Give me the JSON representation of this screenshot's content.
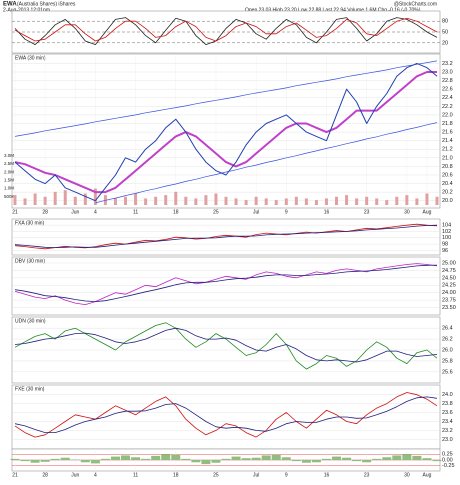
{
  "header": {
    "symbol": "EWA",
    "name": "(Australia Shares) iShares",
    "date": "2-Aug-2013 12:01pm",
    "quote": "Open 23.03 High 23.20 Low 22.88 Last 22.94 Volume 1.6M Chg -0.16 (-0.70%)",
    "source": "@StockCharts.com"
  },
  "chart_data": [
    {
      "type": "line",
      "ylim": [
        0,
        100
      ],
      "yticks": [
        20,
        50,
        80
      ],
      "grid": "dashed",
      "series": [
        {
          "color": "#222222",
          "width": 0.8,
          "values": [
            60,
            30,
            15,
            40,
            70,
            85,
            60,
            25,
            15,
            50,
            85,
            90,
            70,
            40,
            20,
            55,
            88,
            80,
            40,
            15,
            25,
            60,
            85,
            75,
            45,
            30,
            60,
            85,
            70,
            35,
            20,
            50,
            85,
            90,
            60,
            25,
            45,
            80,
            90,
            85,
            70,
            50,
            35
          ]
        },
        {
          "color": "#d01010",
          "width": 0.8,
          "values": [
            55,
            40,
            25,
            30,
            50,
            70,
            70,
            45,
            25,
            35,
            60,
            80,
            80,
            60,
            35,
            40,
            65,
            80,
            65,
            35,
            25,
            40,
            65,
            75,
            65,
            45,
            45,
            65,
            75,
            55,
            35,
            40,
            60,
            85,
            75,
            45,
            40,
            60,
            80,
            88,
            80,
            65,
            50
          ]
        }
      ]
    },
    {
      "type": "line",
      "title": "EWA (30 min)",
      "ylim": [
        19.9,
        23.35
      ],
      "yticks": [
        {
          "value": 20,
          "label": "20.0"
        },
        20.2,
        20.4,
        20.6,
        20.8,
        {
          "value": 21,
          "label": "21.0"
        },
        21.2,
        21.4,
        21.6,
        21.8,
        {
          "value": 22,
          "label": "22.0"
        },
        22.2,
        22.4,
        22.6,
        22.8,
        {
          "value": 23,
          "label": "23.0"
        },
        23.2
      ],
      "grid": true,
      "y2lim": [
        0,
        9000000
      ],
      "y2ticks": [
        {
          "value": 500000,
          "label": "500K"
        },
        {
          "value": 1000000,
          "label": "1.0M"
        },
        {
          "value": 1500000,
          "label": "1.5M"
        },
        {
          "value": 2000000,
          "label": "2.0M"
        },
        {
          "value": 2500000,
          "label": "2.5M"
        },
        {
          "value": 3000000,
          "label": "3.0M"
        }
      ],
      "categories": [
        "21",
        null,
        null,
        "28",
        null,
        null,
        "Jun",
        null,
        "4",
        null,
        null,
        null,
        "11",
        null,
        null,
        null,
        "18",
        null,
        null,
        null,
        "25",
        null,
        null,
        null,
        "Jul",
        null,
        null,
        "9",
        null,
        null,
        null,
        "16",
        null,
        null,
        null,
        "23",
        null,
        null,
        null,
        "30",
        null,
        "Aug",
        null
      ],
      "series": [
        {
          "axis": "y2",
          "color": "#e0a0a0",
          "values": [
            600000,
            400000,
            700000,
            500000,
            800000,
            900000,
            500000,
            700000,
            1000000,
            600000,
            400000,
            500000,
            700000,
            400000,
            500000,
            600000,
            800000,
            500000,
            400000,
            600000,
            700000,
            500000,
            400000,
            300000,
            500000,
            400000,
            300000,
            400000,
            500000,
            400000,
            300000,
            400000,
            500000,
            600000,
            400000,
            500000,
            400000,
            300000,
            500000,
            600000,
            400000,
            700000,
            500000
          ]
        },
        {
          "color": "#3a50e0",
          "width": 0.7,
          "values": [
            21.5,
            21.54,
            21.58,
            21.63,
            21.67,
            21.71,
            21.75,
            21.79,
            21.84,
            21.88,
            21.92,
            21.96,
            22.0,
            22.05,
            22.09,
            22.13,
            22.17,
            22.21,
            22.26,
            22.3,
            22.34,
            22.38,
            22.42,
            22.47,
            22.51,
            22.55,
            22.59,
            22.63,
            22.68,
            22.72,
            22.76,
            22.8,
            22.84,
            22.89,
            22.93,
            22.97,
            23.01,
            23.05,
            23.1,
            23.14,
            23.18,
            23.22,
            23.26
          ]
        },
        {
          "color": "#3a50e0",
          "width": 0.7,
          "values": [
            null,
            null,
            null,
            null,
            null,
            null,
            null,
            null,
            19.95,
            20.01,
            20.06,
            20.12,
            20.17,
            20.23,
            20.28,
            20.34,
            20.39,
            20.45,
            20.5,
            20.56,
            20.61,
            20.67,
            20.72,
            20.78,
            20.83,
            20.89,
            20.94,
            21.0,
            21.05,
            21.11,
            21.16,
            21.22,
            21.27,
            21.33,
            21.38,
            21.44,
            21.49,
            21.55,
            21.6,
            21.66,
            21.71,
            21.77,
            21.82
          ]
        },
        {
          "color": "#c040c8",
          "width": 2,
          "values": [
            20.9,
            20.85,
            20.75,
            20.65,
            20.6,
            20.5,
            20.4,
            20.3,
            20.2,
            20.2,
            20.3,
            20.5,
            20.7,
            20.9,
            21.1,
            21.3,
            21.5,
            21.6,
            21.5,
            21.3,
            21.1,
            20.9,
            20.8,
            20.9,
            21.1,
            21.3,
            21.5,
            21.7,
            21.8,
            21.8,
            21.7,
            21.6,
            21.7,
            21.9,
            22.1,
            22.1,
            22.1,
            22.3,
            22.5,
            22.7,
            22.9,
            23.0,
            23.0
          ]
        },
        {
          "color": "#1f3fb0",
          "width": 1,
          "values": [
            20.9,
            20.7,
            20.5,
            20.4,
            20.6,
            20.3,
            20.2,
            20.1,
            20.0,
            20.3,
            20.6,
            21.0,
            20.9,
            21.2,
            21.4,
            21.7,
            21.9,
            21.6,
            21.2,
            20.9,
            20.7,
            20.6,
            20.9,
            21.3,
            21.6,
            21.8,
            21.9,
            22.0,
            21.8,
            21.6,
            21.5,
            21.4,
            22.0,
            22.6,
            22.3,
            21.8,
            22.2,
            22.5,
            22.9,
            23.1,
            23.2,
            23.1,
            22.9
          ]
        }
      ]
    },
    {
      "type": "line",
      "title": "FXA (30 min)",
      "ylim": [
        95.5,
        105
      ],
      "yticks": [
        96,
        98,
        100,
        102,
        104
      ],
      "grid": true,
      "series": [
        {
          "color": "#d01010",
          "width": 0.8,
          "values": [
            97.5,
            97.2,
            96.8,
            96.5,
            96.9,
            97.3,
            97.0,
            96.8,
            97.2,
            97.8,
            98.3,
            98.0,
            98.6,
            99.2,
            99.0,
            99.5,
            100.2,
            100.0,
            99.6,
            99.8,
            100.4,
            100.8,
            100.5,
            100.2,
            101.0,
            101.5,
            101.2,
            100.9,
            101.4,
            101.8,
            101.5,
            101.9,
            102.3,
            102.0,
            102.5,
            103.0,
            102.8,
            103.2,
            103.6,
            104.0,
            104.3,
            104.0,
            103.8
          ]
        },
        {
          "color": "#202080",
          "width": 0.8,
          "values": [
            97.8,
            97.6,
            97.3,
            97.0,
            96.9,
            97.0,
            97.1,
            97.0,
            97.0,
            97.3,
            97.7,
            98.0,
            98.3,
            98.6,
            98.9,
            99.2,
            99.5,
            99.8,
            99.9,
            99.9,
            100.0,
            100.3,
            100.5,
            100.5,
            100.6,
            100.9,
            101.1,
            101.2,
            101.3,
            101.5,
            101.6,
            101.7,
            101.9,
            102.0,
            102.2,
            102.5,
            102.7,
            102.9,
            103.1,
            103.4,
            103.7,
            103.9,
            104.0
          ]
        }
      ]
    },
    {
      "type": "line",
      "title": "DBV (30 min)",
      "ylim": [
        23.35,
        25.1
      ],
      "yticks": [
        {
          "value": 23.5,
          "label": "23.50"
        },
        23.75,
        {
          "value": 24,
          "label": "24.00"
        },
        24.25,
        {
          "value": 24.5,
          "label": "24.50"
        },
        24.75,
        {
          "value": 25,
          "label": "25.00"
        }
      ],
      "grid": true,
      "series": [
        {
          "color": "#c020c8",
          "width": 0.8,
          "values": [
            24.05,
            23.95,
            23.85,
            23.8,
            23.9,
            23.75,
            23.65,
            23.6,
            23.7,
            23.85,
            24.0,
            23.95,
            24.1,
            24.25,
            24.2,
            24.35,
            24.5,
            24.4,
            24.3,
            24.35,
            24.45,
            24.55,
            24.5,
            24.45,
            24.6,
            24.7,
            24.65,
            24.55,
            24.5,
            24.6,
            24.7,
            24.65,
            24.75,
            24.8,
            24.75,
            24.7,
            24.8,
            24.85,
            24.9,
            24.95,
            24.98,
            24.95,
            24.9
          ]
        },
        {
          "color": "#202080",
          "width": 0.8,
          "values": [
            24.1,
            24.05,
            23.98,
            23.9,
            23.87,
            23.83,
            23.77,
            23.72,
            23.7,
            23.73,
            23.8,
            23.87,
            23.95,
            24.03,
            24.1,
            24.18,
            24.27,
            24.33,
            24.35,
            24.35,
            24.38,
            24.43,
            24.47,
            24.49,
            24.52,
            24.57,
            24.6,
            24.6,
            24.58,
            24.58,
            24.61,
            24.63,
            24.66,
            24.7,
            24.72,
            24.73,
            24.75,
            24.78,
            24.82,
            24.86,
            24.9,
            24.92,
            24.93
          ]
        }
      ]
    },
    {
      "type": "line",
      "title": "UDN (30 min)",
      "ylim": [
        25.45,
        26.55
      ],
      "yticks": [
        25.6,
        25.8,
        {
          "value": 26,
          "label": "26.0"
        },
        26.2,
        26.4
      ],
      "grid": true,
      "series": [
        {
          "color": "#208a20",
          "width": 0.8,
          "values": [
            26.05,
            26.15,
            26.25,
            26.3,
            26.2,
            26.35,
            26.4,
            26.3,
            26.2,
            26.1,
            26.0,
            26.15,
            26.25,
            26.35,
            26.45,
            26.5,
            26.4,
            26.2,
            26.05,
            26.15,
            26.3,
            26.2,
            26.05,
            25.9,
            25.95,
            26.1,
            26.3,
            26.1,
            25.8,
            25.65,
            25.75,
            25.9,
            25.85,
            25.7,
            25.8,
            26.0,
            26.15,
            26.05,
            25.85,
            25.75,
            25.95,
            26.0,
            25.85
          ]
        },
        {
          "color": "#202080",
          "width": 0.8,
          "values": [
            26.1,
            26.12,
            26.16,
            26.2,
            26.22,
            26.26,
            26.3,
            26.31,
            26.28,
            26.22,
            26.15,
            26.12,
            26.15,
            26.2,
            26.28,
            26.36,
            26.4,
            26.36,
            26.26,
            26.2,
            26.2,
            26.22,
            26.18,
            26.08,
            26.0,
            25.98,
            26.05,
            26.1,
            26.02,
            25.9,
            25.82,
            25.8,
            25.82,
            25.8,
            25.78,
            25.82,
            25.9,
            25.98,
            25.98,
            25.92,
            25.88,
            25.9,
            25.92
          ]
        }
      ]
    },
    {
      "type": "line",
      "title": "FXE (30 min)",
      "ylim": [
        22.85,
        24.15
      ],
      "yticks": [
        {
          "value": 23,
          "label": "23.0"
        },
        23.2,
        23.4,
        23.6,
        23.8,
        {
          "value": 24,
          "label": "24.0"
        }
      ],
      "grid": true,
      "series": [
        {
          "color": "#d01010",
          "width": 0.8,
          "values": [
            23.3,
            23.15,
            23.05,
            23.1,
            23.25,
            23.4,
            23.55,
            23.5,
            23.45,
            23.6,
            23.75,
            23.65,
            23.55,
            23.7,
            23.85,
            23.95,
            23.75,
            23.45,
            23.25,
            23.1,
            23.2,
            23.35,
            23.3,
            23.15,
            23.05,
            23.2,
            23.45,
            23.6,
            23.4,
            23.25,
            23.45,
            23.65,
            23.55,
            23.4,
            23.35,
            23.55,
            23.7,
            23.8,
            23.95,
            24.05,
            24.0,
            23.9,
            23.75
          ]
        },
        {
          "color": "#202080",
          "width": 0.8,
          "values": [
            23.35,
            23.3,
            23.22,
            23.15,
            23.15,
            23.22,
            23.32,
            23.4,
            23.45,
            23.5,
            23.58,
            23.63,
            23.63,
            23.64,
            23.7,
            23.78,
            23.8,
            23.7,
            23.55,
            23.4,
            23.28,
            23.25,
            23.27,
            23.25,
            23.2,
            23.18,
            23.25,
            23.35,
            23.4,
            23.38,
            23.38,
            23.45,
            23.5,
            23.5,
            23.47,
            23.48,
            23.55,
            23.63,
            23.73,
            23.85,
            23.93,
            23.95,
            23.92
          ]
        }
      ]
    },
    {
      "type": "bar",
      "ylim": [
        -0.35,
        0.35
      ],
      "yticks": [
        -0.25,
        {
          "value": 0,
          "label": "0.00"
        },
        0.25
      ],
      "grid": "red",
      "color": "#8fbf7f",
      "categories": [
        "21",
        null,
        null,
        "28",
        null,
        null,
        "Jun",
        null,
        "4",
        null,
        null,
        null,
        "11",
        null,
        null,
        null,
        "18",
        null,
        null,
        null,
        "25",
        null,
        null,
        null,
        "Jul",
        null,
        null,
        "9",
        null,
        null,
        null,
        "16",
        null,
        null,
        null,
        "23",
        null,
        null,
        null,
        "30",
        null,
        "Aug",
        null
      ],
      "values": [
        0.05,
        -0.05,
        -0.12,
        -0.08,
        0.05,
        0.1,
        0.02,
        -0.1,
        -0.15,
        0.05,
        0.15,
        0.2,
        0.12,
        0.05,
        0.18,
        0.25,
        0.22,
        0.05,
        -0.1,
        -0.18,
        -0.12,
        0.05,
        0.15,
        0.08,
        0.1,
        0.2,
        0.22,
        0.12,
        -0.05,
        -0.12,
        -0.1,
        0.05,
        0.15,
        0.1,
        -0.05,
        -0.1,
        0.05,
        0.12,
        0.2,
        0.25,
        0.18,
        0.08,
        -0.05
      ]
    }
  ]
}
